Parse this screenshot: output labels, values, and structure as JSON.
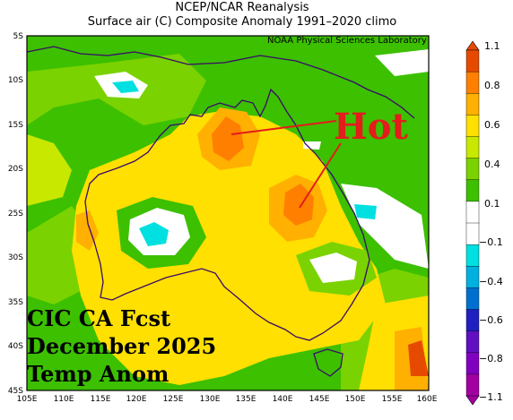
{
  "header": {
    "title": "NCEP/NCAR Reanalysis",
    "subtitle": "Surface air (C) Composite Anomaly 1991–2020 climo"
  },
  "credit": "NOAA Physical Sciences Laboratory",
  "annotation": {
    "hot_label": "Hot",
    "forecast_lines": [
      "CIC CA Fcst",
      "December 2025",
      "Temp Anom"
    ]
  },
  "axes": {
    "lat_labels": [
      "5S",
      "10S",
      "15S",
      "20S",
      "25S",
      "30S",
      "35S",
      "40S",
      "45S"
    ],
    "lon_labels": [
      "105E",
      "110E",
      "115E",
      "120E",
      "125E",
      "130E",
      "135E",
      "140E",
      "145E",
      "150E",
      "155E",
      "160E"
    ]
  },
  "colorbar": {
    "labels": [
      "1.1",
      "0.8",
      "0.6",
      "0.4",
      "0.1",
      "−0.1",
      "−0.4",
      "−0.6",
      "−0.8",
      "−1.1"
    ],
    "colors": [
      "#e64a00",
      "#ff7f00",
      "#ffb000",
      "#ffe000",
      "#c8e800",
      "#7ad200",
      "#3cc000",
      "#ffffff",
      "#ffffff",
      "#00e0e0",
      "#00b0e0",
      "#0070d0",
      "#2020c0",
      "#6010c0",
      "#8000c0",
      "#a000a0"
    ]
  }
}
